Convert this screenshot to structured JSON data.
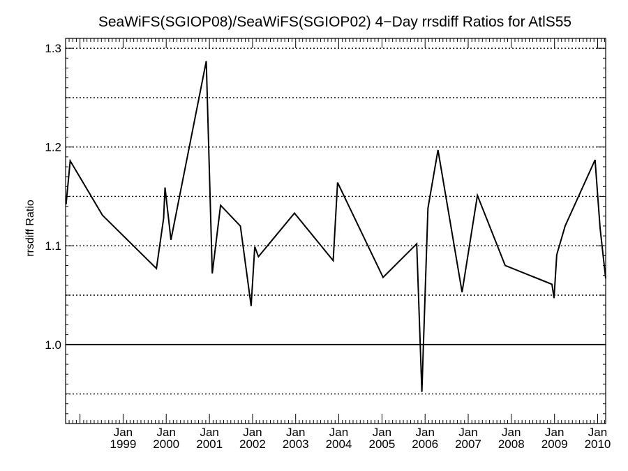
{
  "chart_data": {
    "type": "line",
    "title": "SeaWiFS(SGIOP08)/SeaWiFS(SGIOP02) 4−Day rrsdiff Ratios for AtlS55",
    "xlabel": "",
    "ylabel": "rrsdiff Ratio",
    "x_ticks": [
      {
        "top": "Jan",
        "bottom": "1999",
        "date": "1999-01-01"
      },
      {
        "top": "Jan",
        "bottom": "2000",
        "date": "2000-01-01"
      },
      {
        "top": "Jan",
        "bottom": "2001",
        "date": "2001-01-01"
      },
      {
        "top": "Jan",
        "bottom": "2002",
        "date": "2002-01-01"
      },
      {
        "top": "Jan",
        "bottom": "2003",
        "date": "2003-01-01"
      },
      {
        "top": "Jan",
        "bottom": "2004",
        "date": "2004-01-01"
      },
      {
        "top": "Jan",
        "bottom": "2005",
        "date": "2005-01-01"
      },
      {
        "top": "Jan",
        "bottom": "2006",
        "date": "2006-01-01"
      },
      {
        "top": "Jan",
        "bottom": "2007",
        "date": "2007-01-01"
      },
      {
        "top": "Jan",
        "bottom": "2008",
        "date": "2008-01-01"
      },
      {
        "top": "Jan",
        "bottom": "2009",
        "date": "2009-01-01"
      },
      {
        "top": "Jan",
        "bottom": "2010",
        "date": "2010-01-01"
      }
    ],
    "xlim": [
      "1997-09-01",
      "2010-03-10"
    ],
    "ylim": [
      0.92,
      1.31
    ],
    "y_ticks": [
      "1.0",
      "1.1",
      "1.2",
      "1.3"
    ],
    "y_tick_values": [
      1.0,
      1.1,
      1.2,
      1.3
    ],
    "gridlines_dotted": [
      0.95,
      1.05,
      1.1,
      1.15,
      1.2,
      1.25,
      1.3
    ],
    "reference_line": 1.0,
    "grid": true,
    "series": [
      {
        "color": "#000000",
        "points": [
          [
            "1997-09-05",
            1.142
          ],
          [
            "1997-10-10",
            1.186
          ],
          [
            "1998-07-10",
            1.131
          ],
          [
            "1999-10-10",
            1.077
          ],
          [
            "1999-12-10",
            1.128
          ],
          [
            "1999-12-22",
            1.159
          ],
          [
            "2000-02-10",
            1.106
          ],
          [
            "2000-12-05",
            1.287
          ],
          [
            "2001-01-25",
            1.072
          ],
          [
            "2001-04-05",
            1.141
          ],
          [
            "2001-09-20",
            1.12
          ],
          [
            "2001-12-20",
            1.039
          ],
          [
            "2002-01-20",
            1.099
          ],
          [
            "2002-02-20",
            1.089
          ],
          [
            "2002-12-22",
            1.133
          ],
          [
            "2003-11-15",
            1.085
          ],
          [
            "2003-12-22",
            1.164
          ],
          [
            "2005-01-10",
            1.068
          ],
          [
            "2005-10-22",
            1.102
          ],
          [
            "2005-12-05",
            0.952
          ],
          [
            "2006-01-25",
            1.138
          ],
          [
            "2006-04-20",
            1.197
          ],
          [
            "2006-11-10",
            1.053
          ],
          [
            "2007-03-20",
            1.151
          ],
          [
            "2007-11-10",
            1.08
          ],
          [
            "2008-12-10",
            1.061
          ],
          [
            "2008-12-28",
            1.047
          ],
          [
            "2009-01-20",
            1.091
          ],
          [
            "2009-04-01",
            1.12
          ],
          [
            "2009-12-10",
            1.187
          ],
          [
            "2010-01-22",
            1.118
          ],
          [
            "2010-03-10",
            1.067
          ]
        ]
      }
    ]
  }
}
